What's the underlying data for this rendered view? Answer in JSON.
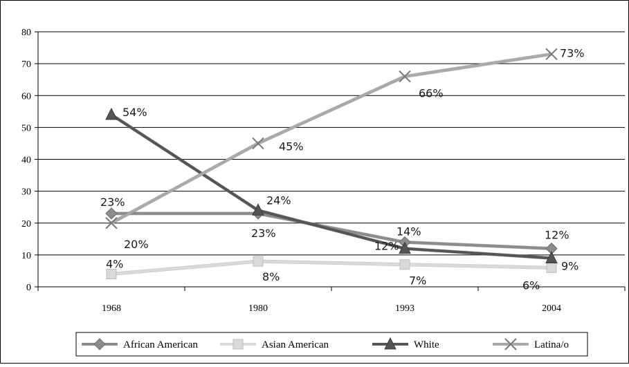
{
  "chart_data": {
    "type": "line",
    "title": "",
    "xlabel": "",
    "ylabel": "",
    "categories": [
      "1968",
      "1980",
      "1993",
      "2004"
    ],
    "ylim": [
      0,
      80
    ],
    "yticks": [
      "0",
      "10",
      "20",
      "30",
      "40",
      "50",
      "60",
      "70",
      "80"
    ],
    "grid": true,
    "legend_position": "bottom",
    "series": [
      {
        "name": "African American",
        "marker": "diamond",
        "color": "#8c8c8c",
        "values": [
          23,
          23,
          14,
          12
        ],
        "labels": [
          "23%",
          "23%",
          "14%",
          "12%"
        ]
      },
      {
        "name": "Asian American",
        "marker": "square",
        "color": "#d9d9d9",
        "values": [
          4,
          8,
          7,
          6
        ],
        "labels": [
          "4%",
          "8%",
          "7%",
          "6%"
        ]
      },
      {
        "name": "White",
        "marker": "triangle",
        "color": "#555555",
        "values": [
          54,
          24,
          12,
          9
        ],
        "labels": [
          "54%",
          "24%",
          "12%",
          "9%"
        ]
      },
      {
        "name": "Latina/o",
        "marker": "x",
        "color": "#a9a9a9",
        "values": [
          20,
          45,
          66,
          73
        ],
        "labels": [
          "20%",
          "45%",
          "66%",
          "73%"
        ]
      }
    ]
  }
}
